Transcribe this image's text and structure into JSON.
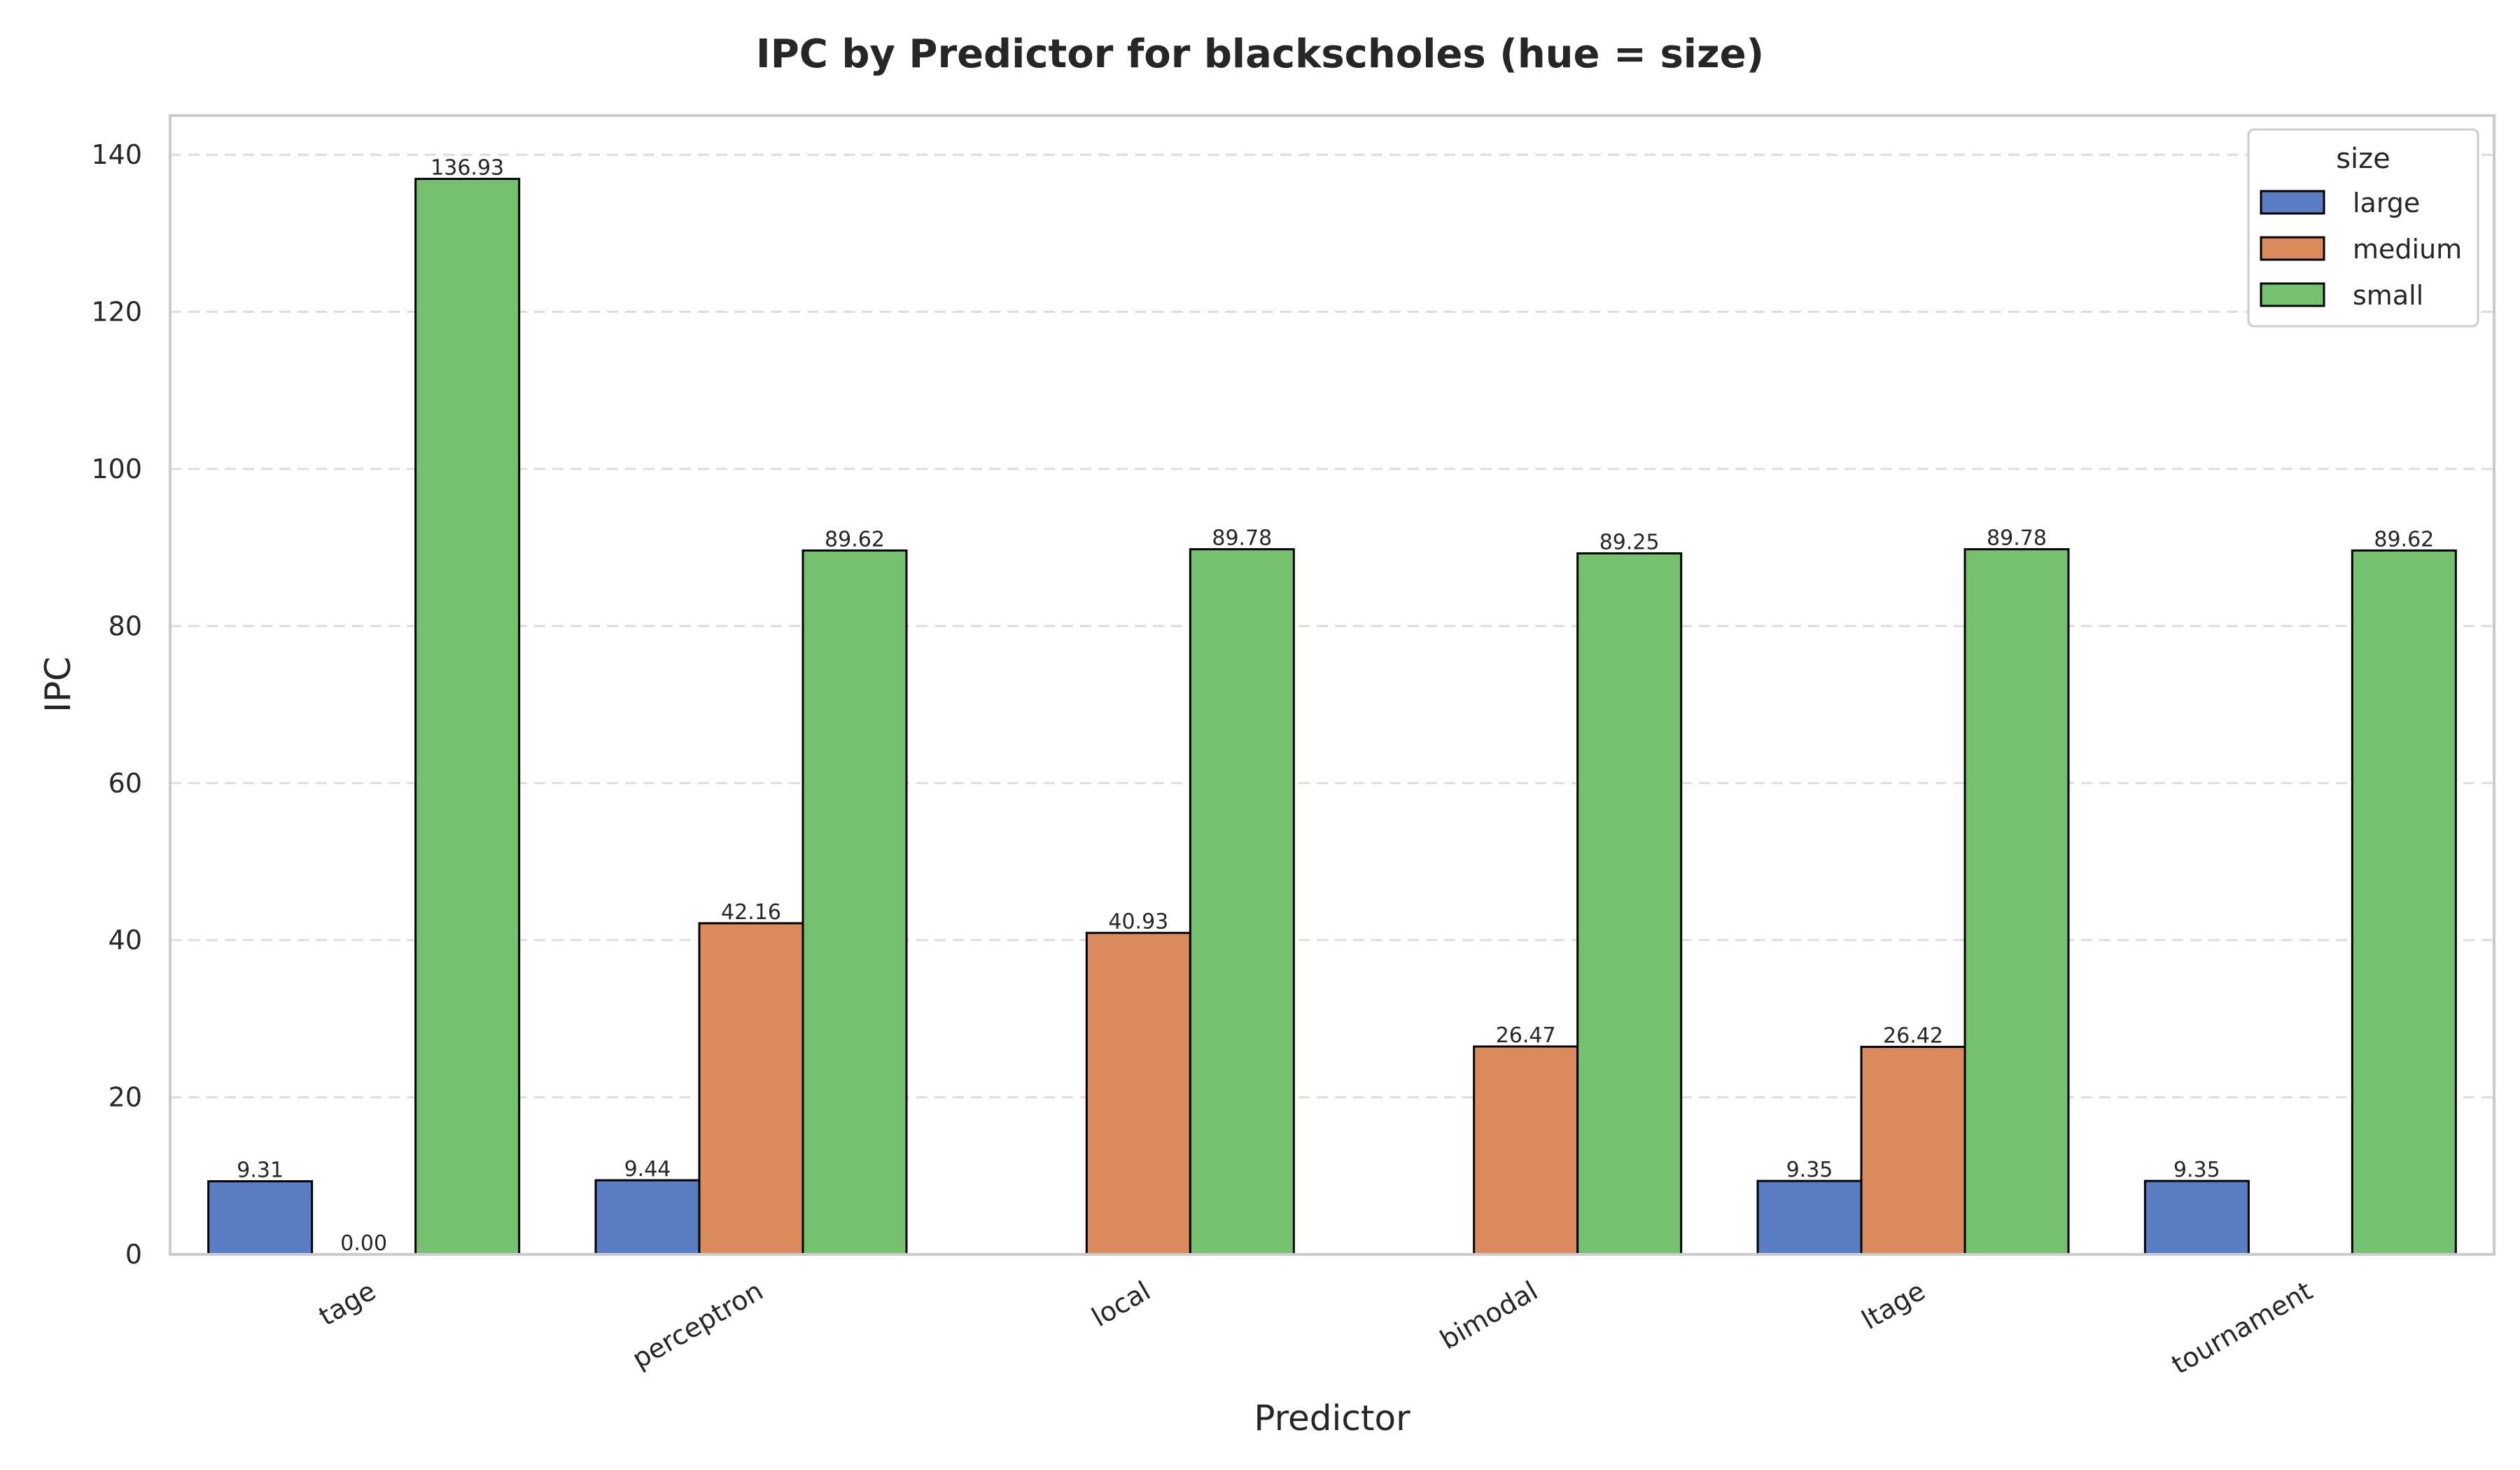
{
  "chart_data": {
    "type": "bar",
    "title": "IPC by Predictor for blackscholes (hue = size)",
    "xlabel": "Predictor",
    "ylabel": "IPC",
    "ylim": [
      0,
      145
    ],
    "yticks": [
      0,
      20,
      40,
      60,
      80,
      100,
      120,
      140
    ],
    "grid": "y-dashed",
    "categories": [
      "tage",
      "perceptron",
      "local",
      "bimodal",
      "ltage",
      "tournament"
    ],
    "series": [
      {
        "name": "large",
        "color": "#5a7dc4",
        "values": [
          9.31,
          9.44,
          null,
          null,
          9.35,
          9.35
        ]
      },
      {
        "name": "medium",
        "color": "#db8a5e",
        "values": [
          0.0,
          42.16,
          40.93,
          26.47,
          26.42,
          null
        ]
      },
      {
        "name": "small",
        "color": "#75c170",
        "values": [
          136.93,
          89.62,
          89.78,
          89.25,
          89.78,
          89.62
        ]
      }
    ],
    "legend": {
      "title": "size",
      "placement": "top-right"
    }
  }
}
